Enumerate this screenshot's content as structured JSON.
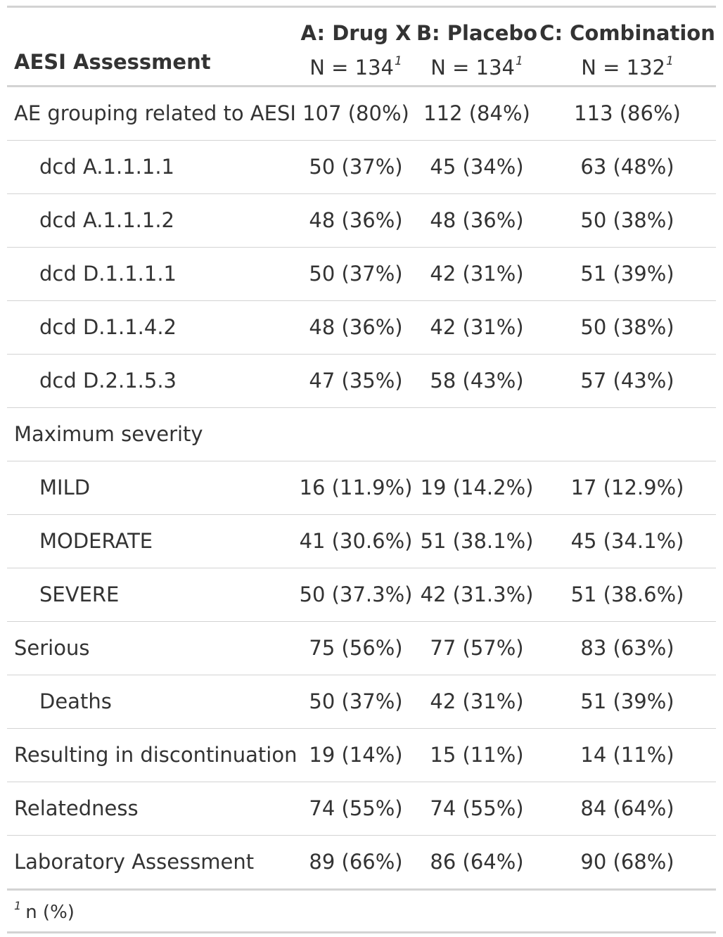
{
  "table": {
    "stub_header": "AESI Assessment",
    "footnote_mark": "1",
    "columns": [
      {
        "name": "A: Drug X",
        "n": "N = 134",
        "mark": "1"
      },
      {
        "name": "B: Placebo",
        "n": "N = 134",
        "mark": "1"
      },
      {
        "name": "C: Combination",
        "n": "N = 132",
        "mark": "1"
      }
    ],
    "rows": [
      {
        "label": "AE grouping related to AESI",
        "indent": false,
        "values": [
          "107 (80%)",
          "112 (84%)",
          "113 (86%)"
        ]
      },
      {
        "label": "dcd A.1.1.1.1",
        "indent": true,
        "values": [
          "50 (37%)",
          "45 (34%)",
          "63 (48%)"
        ]
      },
      {
        "label": "dcd A.1.1.1.2",
        "indent": true,
        "values": [
          "48 (36%)",
          "48 (36%)",
          "50 (38%)"
        ]
      },
      {
        "label": "dcd D.1.1.1.1",
        "indent": true,
        "values": [
          "50 (37%)",
          "42 (31%)",
          "51 (39%)"
        ]
      },
      {
        "label": "dcd D.1.1.4.2",
        "indent": true,
        "values": [
          "48 (36%)",
          "42 (31%)",
          "50 (38%)"
        ]
      },
      {
        "label": "dcd D.2.1.5.3",
        "indent": true,
        "values": [
          "47 (35%)",
          "58 (43%)",
          "57 (43%)"
        ]
      },
      {
        "label": "Maximum severity",
        "indent": false,
        "values": [
          "",
          "",
          ""
        ]
      },
      {
        "label": "MILD",
        "indent": true,
        "values": [
          "16 (11.9%)",
          "19 (14.2%)",
          "17 (12.9%)"
        ]
      },
      {
        "label": "MODERATE",
        "indent": true,
        "values": [
          "41 (30.6%)",
          "51 (38.1%)",
          "45 (34.1%)"
        ]
      },
      {
        "label": "SEVERE",
        "indent": true,
        "values": [
          "50 (37.3%)",
          "42 (31.3%)",
          "51 (38.6%)"
        ]
      },
      {
        "label": "Serious",
        "indent": false,
        "values": [
          "75 (56%)",
          "77 (57%)",
          "83 (63%)"
        ]
      },
      {
        "label": "Deaths",
        "indent": true,
        "values": [
          "50 (37%)",
          "42 (31%)",
          "51 (39%)"
        ]
      },
      {
        "label": "Resulting in discontinuation",
        "indent": false,
        "values": [
          "19 (14%)",
          "15 (11%)",
          "14 (11%)"
        ]
      },
      {
        "label": "Relatedness",
        "indent": false,
        "values": [
          "74 (55%)",
          "74 (55%)",
          "84 (64%)"
        ]
      },
      {
        "label": "Laboratory Assessment",
        "indent": false,
        "values": [
          "89 (66%)",
          "86 (64%)",
          "90 (68%)"
        ]
      }
    ],
    "footnote": "n (%)"
  },
  "colors": {
    "text": "#333333",
    "rule": "#d3d3d3",
    "background": "#ffffff"
  }
}
